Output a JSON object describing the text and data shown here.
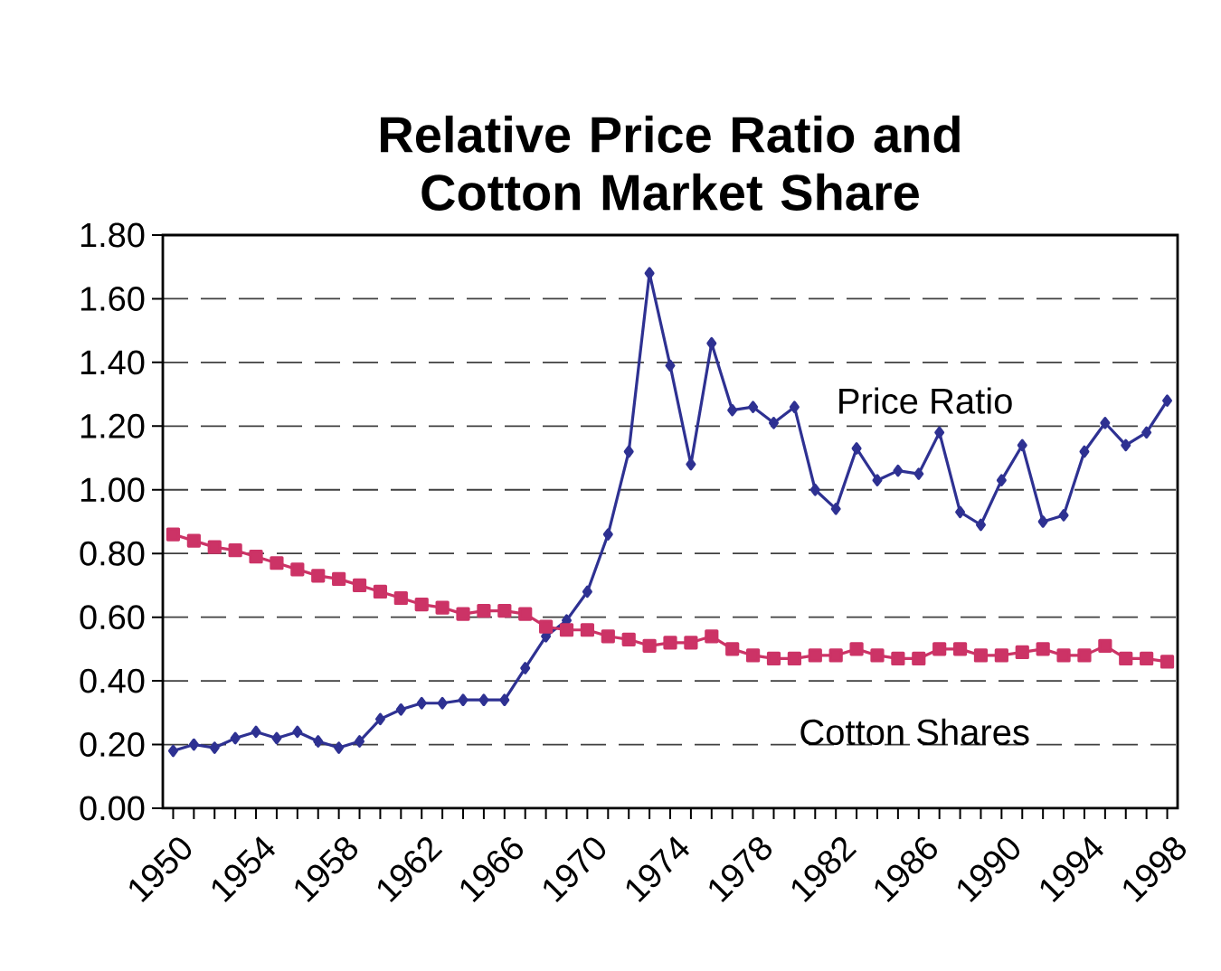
{
  "chart_data": {
    "type": "line",
    "title": "Relative Price Ratio and Cotton Market Share",
    "categories": [
      "1950",
      null,
      null,
      null,
      "1954",
      null,
      null,
      null,
      "1958",
      null,
      null,
      null,
      "1962",
      null,
      null,
      null,
      "1966",
      null,
      null,
      null,
      "1970",
      null,
      null,
      null,
      "1974",
      null,
      null,
      null,
      "1978",
      null,
      null,
      null,
      "1982",
      null,
      null,
      null,
      "1986",
      null,
      null,
      null,
      "1990",
      null,
      null,
      null,
      "1994",
      null,
      null,
      null,
      "1998"
    ],
    "series": [
      {
        "name": "Price Ratio",
        "color": "#2e3192",
        "marker": "diamond",
        "values": [
          0.18,
          0.2,
          0.19,
          0.22,
          0.24,
          0.22,
          0.24,
          0.21,
          0.19,
          0.21,
          0.28,
          0.31,
          0.33,
          0.33,
          0.34,
          0.34,
          0.34,
          0.44,
          0.54,
          0.59,
          0.68,
          0.86,
          1.12,
          1.68,
          1.39,
          1.08,
          1.46,
          1.25,
          1.26,
          1.21,
          1.26,
          1.0,
          0.94,
          1.13,
          1.03,
          1.06,
          1.05,
          1.18,
          0.93,
          0.89,
          1.03,
          1.14,
          0.9,
          0.92,
          1.12,
          1.21,
          1.14,
          1.18,
          1.28
        ]
      },
      {
        "name": "Cotton Shares",
        "color": "#cc3366",
        "marker": "square",
        "values": [
          0.86,
          0.84,
          0.82,
          0.81,
          0.79,
          0.77,
          0.75,
          0.73,
          0.72,
          0.7,
          0.68,
          0.66,
          0.64,
          0.63,
          0.61,
          0.62,
          0.62,
          0.61,
          0.57,
          0.56,
          0.56,
          0.54,
          0.53,
          0.51,
          0.52,
          0.52,
          0.54,
          0.5,
          0.48,
          0.47,
          0.47,
          0.48,
          0.48,
          0.5,
          0.48,
          0.47,
          0.47,
          0.5,
          0.5,
          0.48,
          0.48,
          0.49,
          0.5,
          0.48,
          0.48,
          0.51,
          0.47,
          0.47,
          0.46
        ]
      }
    ],
    "ylim": [
      0,
      1.8
    ],
    "yticks": [
      {
        "value": 0,
        "label": "0.00"
      },
      {
        "value": 0.2,
        "label": "0.20"
      },
      {
        "value": 0.4,
        "label": "0.40"
      },
      {
        "value": 0.6,
        "label": "0.60"
      },
      {
        "value": 0.8,
        "label": "0.80"
      },
      {
        "value": 1.0,
        "label": "1.00"
      },
      {
        "value": 1.2,
        "label": "1.20"
      },
      {
        "value": 1.4,
        "label": "1.40"
      },
      {
        "value": 1.6,
        "label": "1.60"
      },
      {
        "value": 1.8,
        "label": "1.80"
      }
    ],
    "grid": "y",
    "legend": false,
    "line_style": "solid"
  }
}
